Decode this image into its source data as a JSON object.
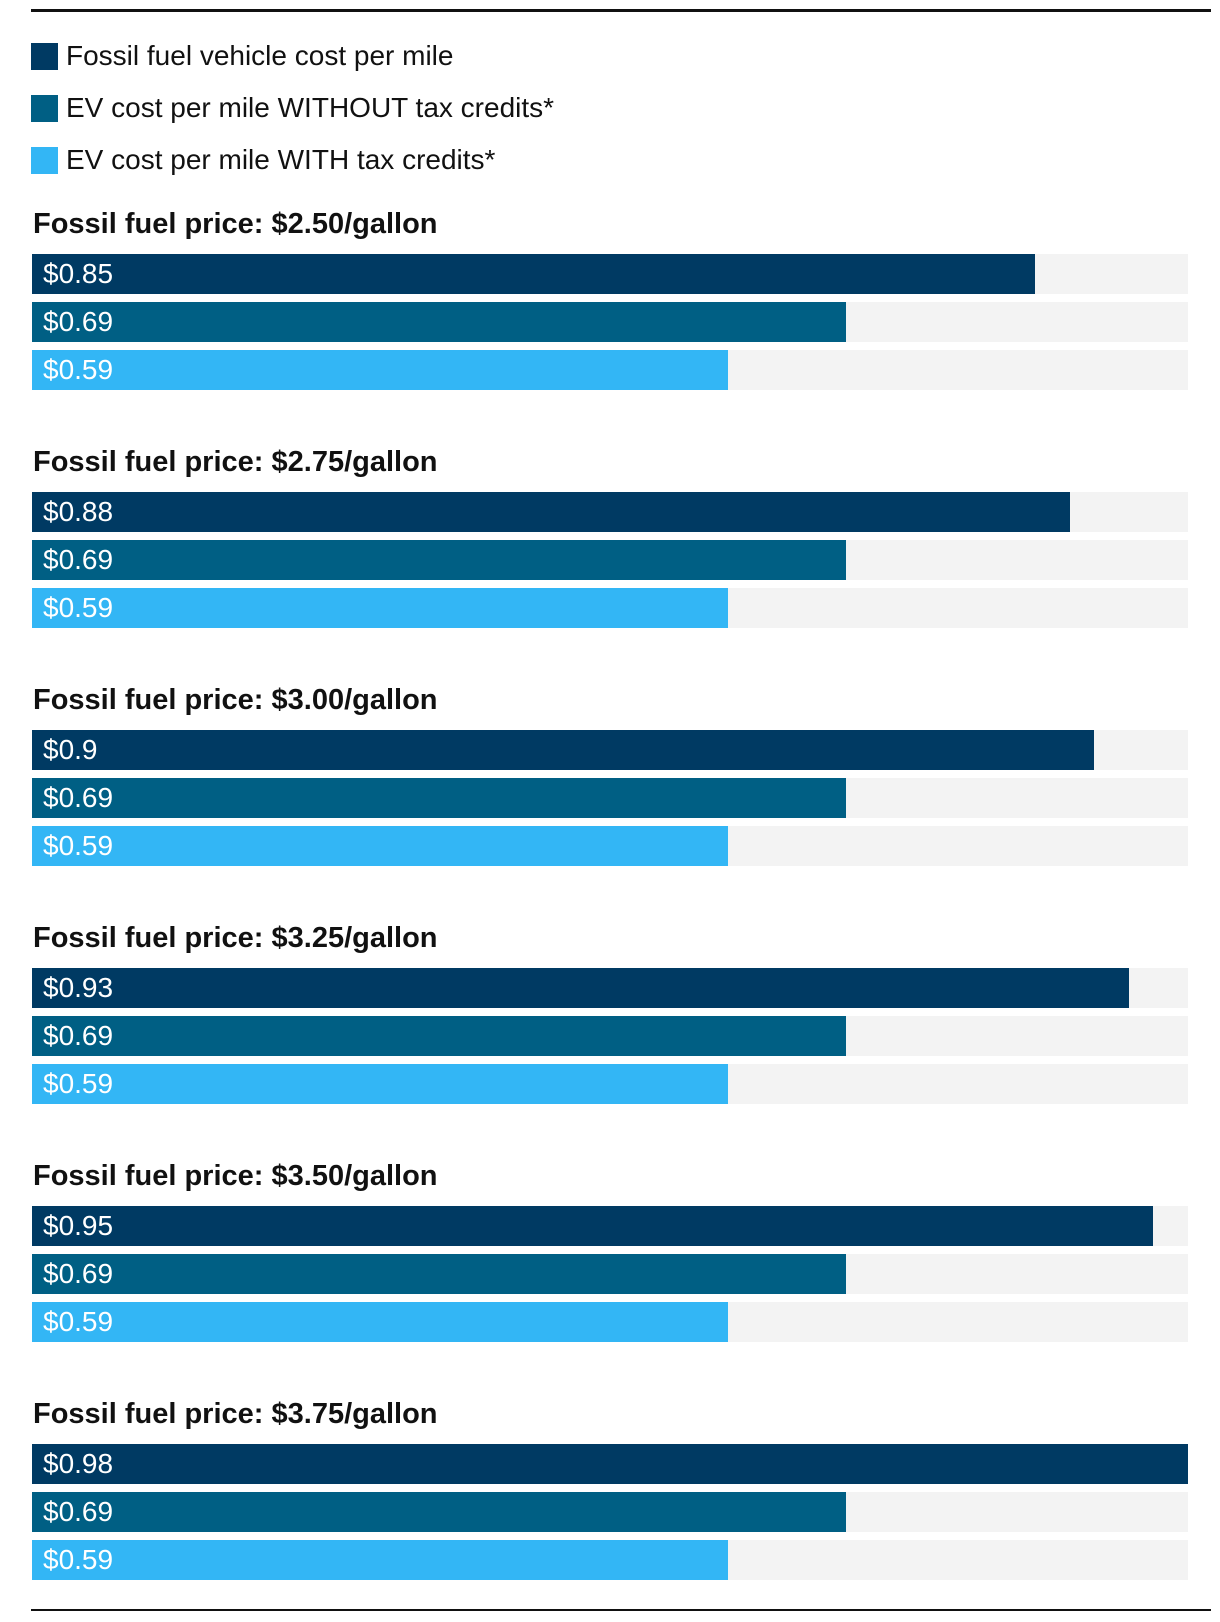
{
  "chart_data": {
    "type": "bar",
    "orientation": "horizontal",
    "title": "",
    "xlabel": "",
    "ylabel": "",
    "xlim": [
      0,
      0.98
    ],
    "legend_position": "top-left",
    "series": [
      {
        "name": "Fossil fuel vehicle cost per mile",
        "color": "#003a63"
      },
      {
        "name": "EV cost per mile WITHOUT tax credits*",
        "color": "#005f84"
      },
      {
        "name": "EV cost per mile WITH tax credits*",
        "color": "#33b6f5"
      }
    ],
    "groups": [
      {
        "title": "Fossil fuel price: $2.50/gallon",
        "values": [
          0.85,
          0.69,
          0.59
        ],
        "labels": [
          "$0.85",
          "$0.69",
          "$0.59"
        ]
      },
      {
        "title": "Fossil fuel price: $2.75/gallon",
        "values": [
          0.88,
          0.69,
          0.59
        ],
        "labels": [
          "$0.88",
          "$0.69",
          "$0.59"
        ]
      },
      {
        "title": "Fossil fuel price: $3.00/gallon",
        "values": [
          0.9,
          0.69,
          0.59
        ],
        "labels": [
          "$0.9",
          "$0.69",
          "$0.59"
        ]
      },
      {
        "title": "Fossil fuel price: $3.25/gallon",
        "values": [
          0.93,
          0.69,
          0.59
        ],
        "labels": [
          "$0.93",
          "$0.69",
          "$0.59"
        ]
      },
      {
        "title": "Fossil fuel price: $3.50/gallon",
        "values": [
          0.95,
          0.69,
          0.59
        ],
        "labels": [
          "$0.95",
          "$0.69",
          "$0.59"
        ]
      },
      {
        "title": "Fossil fuel price: $3.75/gallon",
        "values": [
          0.98,
          0.69,
          0.59
        ],
        "labels": [
          "$0.98",
          "$0.69",
          "$0.59"
        ]
      }
    ]
  }
}
